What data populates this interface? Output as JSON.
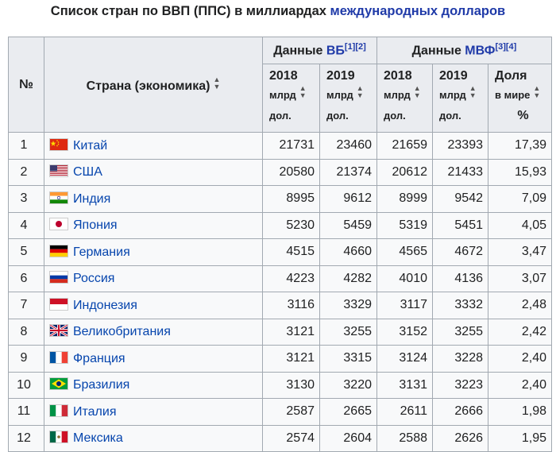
{
  "caption": {
    "prefix": "Список стран по ВВП (ППС) в миллиардах ",
    "link": "международных долларов"
  },
  "header": {
    "num": "№",
    "country": "Страна (экономика)",
    "wb_prefix": "Данные ",
    "wb_link": "ВБ",
    "wb_refs": "[1][2]",
    "imf_prefix": "Данные ",
    "imf_link": "МВФ",
    "imf_refs": "[3][4]",
    "cols": [
      {
        "year": "2018",
        "unit1": "млрд",
        "unit2": "дол."
      },
      {
        "year": "2019",
        "unit1": "млрд",
        "unit2": "дол."
      },
      {
        "year": "2018",
        "unit1": "млрд",
        "unit2": "дол."
      },
      {
        "year": "2019",
        "unit1": "млрд",
        "unit2": "дол."
      }
    ],
    "share1": "Доля",
    "share2": "в мире",
    "share3": "%"
  },
  "rows": [
    {
      "n": "1",
      "country": "Китай",
      "flag": "cn",
      "wb2018": "21731",
      "wb2019": "23460",
      "imf2018": "21659",
      "imf2019": "23393",
      "share": "17,39"
    },
    {
      "n": "2",
      "country": "США",
      "flag": "us",
      "wb2018": "20580",
      "wb2019": "21374",
      "imf2018": "20612",
      "imf2019": "21433",
      "share": "15,93"
    },
    {
      "n": "3",
      "country": "Индия",
      "flag": "in",
      "wb2018": "8995",
      "wb2019": "9612",
      "imf2018": "8999",
      "imf2019": "9542",
      "share": "7,09"
    },
    {
      "n": "4",
      "country": "Япония",
      "flag": "jp",
      "wb2018": "5230",
      "wb2019": "5459",
      "imf2018": "5319",
      "imf2019": "5451",
      "share": "4,05"
    },
    {
      "n": "5",
      "country": "Германия",
      "flag": "de",
      "wb2018": "4515",
      "wb2019": "4660",
      "imf2018": "4565",
      "imf2019": "4672",
      "share": "3,47"
    },
    {
      "n": "6",
      "country": "Россия",
      "flag": "ru",
      "wb2018": "4223",
      "wb2019": "4282",
      "imf2018": "4010",
      "imf2019": "4136",
      "share": "3,07"
    },
    {
      "n": "7",
      "country": "Индонезия",
      "flag": "id",
      "wb2018": "3116",
      "wb2019": "3329",
      "imf2018": "3117",
      "imf2019": "3332",
      "share": "2,48"
    },
    {
      "n": "8",
      "country": "Великобритания",
      "flag": "gb",
      "wb2018": "3121",
      "wb2019": "3255",
      "imf2018": "3152",
      "imf2019": "3255",
      "share": "2,42"
    },
    {
      "n": "9",
      "country": "Франция",
      "flag": "fr",
      "wb2018": "3121",
      "wb2019": "3315",
      "imf2018": "3124",
      "imf2019": "3228",
      "share": "2,40"
    },
    {
      "n": "10",
      "country": "Бразилия",
      "flag": "br",
      "wb2018": "3130",
      "wb2019": "3220",
      "imf2018": "3131",
      "imf2019": "3223",
      "share": "2,40"
    },
    {
      "n": "11",
      "country": "Италия",
      "flag": "it",
      "wb2018": "2587",
      "wb2019": "2665",
      "imf2018": "2611",
      "imf2019": "2666",
      "share": "1,98"
    },
    {
      "n": "12",
      "country": "Мексика",
      "flag": "mx",
      "wb2018": "2574",
      "wb2019": "2604",
      "imf2018": "2588",
      "imf2019": "2626",
      "share": "1,95"
    }
  ]
}
